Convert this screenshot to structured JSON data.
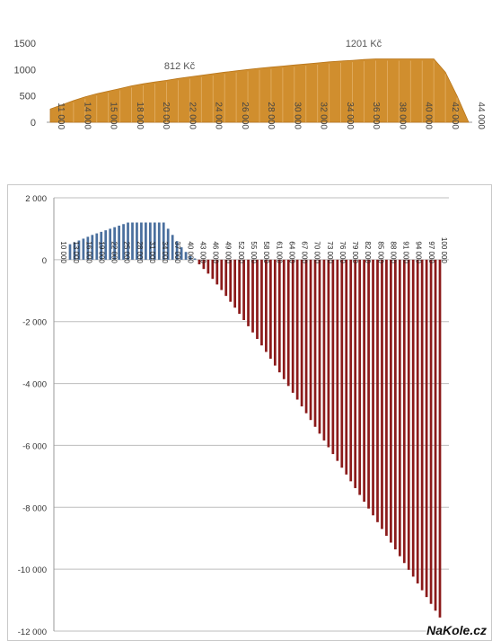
{
  "chart_data": [
    {
      "type": "area",
      "title": "",
      "xlabel": "",
      "ylabel": "",
      "ylim": [
        0,
        1500
      ],
      "yticks": [
        "0",
        "500",
        "1000",
        "1500"
      ],
      "xtick_labels": [
        "11 000",
        "14 000",
        "15 000",
        "18 000",
        "20 000",
        "22 000",
        "24 000",
        "26 000",
        "28 000",
        "30 000",
        "32 000",
        "34 000",
        "36 000",
        "38 000",
        "40 000",
        "42 000",
        "44 000"
      ],
      "annotations": [
        "812 Kč",
        "1201 Kč"
      ],
      "color": "#d08e2e",
      "values": [
        250,
        330,
        410,
        480,
        540,
        590,
        640,
        690,
        730,
        765,
        795,
        830,
        860,
        890,
        920,
        950,
        975,
        1000,
        1025,
        1045,
        1065,
        1085,
        1105,
        1125,
        1145,
        1160,
        1175,
        1190,
        1201,
        1201,
        1201,
        1201,
        1201,
        1201,
        950,
        500,
        0
      ],
      "grid": false
    },
    {
      "type": "bar",
      "title": "",
      "xlabel": "",
      "ylabel": "",
      "ylim": [
        -12000,
        2000
      ],
      "yticks": [
        "-12 000",
        "-10 000",
        "-8 000",
        "-6 000",
        "-4 000",
        "-2 000",
        "0",
        "2 000"
      ],
      "xtick_labels": [
        "10 000",
        "13 000",
        "16 000",
        "19 000",
        "22 000",
        "25 000",
        "28 000",
        "31 000",
        "34 000",
        "37 000",
        "40 000",
        "43 000",
        "46 000",
        "49 000",
        "52 000",
        "55 000",
        "58 000",
        "61 000",
        "64 000",
        "67 000",
        "70 000",
        "73 000",
        "76 000",
        "79 000",
        "82 000",
        "85 000",
        "88 000",
        "91 000",
        "94 000",
        "97 000",
        "100 000"
      ],
      "series": [
        {
          "color": "#4a6f9e",
          "values": [
            500,
            560,
            620,
            680,
            740,
            800,
            850,
            900,
            950,
            1000,
            1050,
            1100,
            1150,
            1200,
            1201,
            1201,
            1201,
            1201,
            1201,
            1201,
            1201,
            1201,
            1000,
            800,
            600,
            400,
            250,
            120,
            40
          ]
        },
        {
          "color": "#8b1a1a",
          "values": [
            -150,
            -300,
            -450,
            -620,
            -800,
            -980,
            -1170,
            -1360,
            -1550,
            -1750,
            -1950,
            -2150,
            -2350,
            -2560,
            -2770,
            -2980,
            -3200,
            -3420,
            -3640,
            -3860,
            -4080,
            -4300,
            -4520,
            -4740,
            -4960,
            -5180,
            -5400,
            -5620,
            -5840,
            -6060,
            -6280,
            -6500,
            -6720,
            -6940,
            -7160,
            -7380,
            -7600,
            -7820,
            -8040,
            -8260,
            -8480,
            -8700,
            -8920,
            -9140,
            -9360,
            -9580,
            -9800,
            -10020,
            -10240,
            -10460,
            -10680,
            -10900,
            -11120,
            -11340,
            -11560
          ]
        }
      ],
      "grid": true
    }
  ],
  "watermark": "NaKole.cz"
}
